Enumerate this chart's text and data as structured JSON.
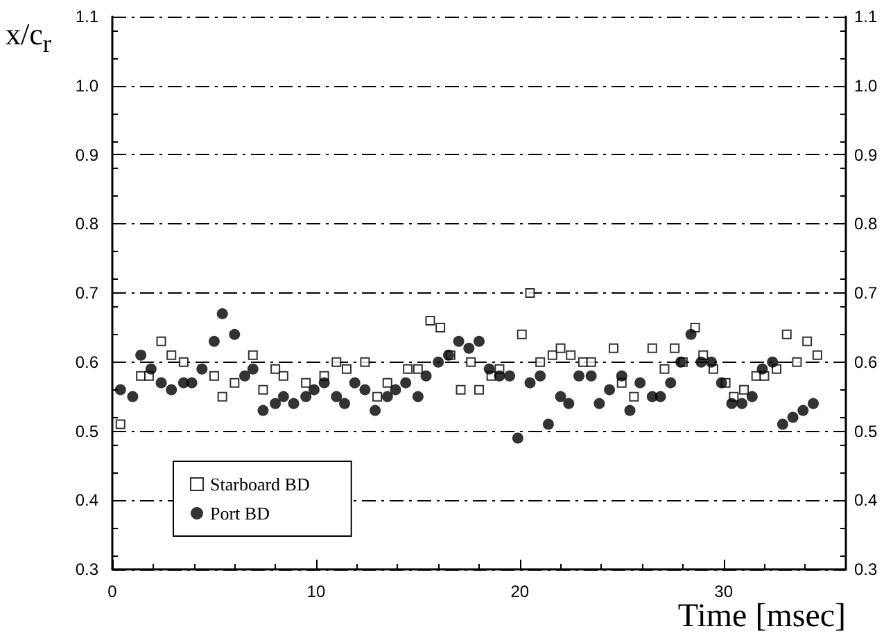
{
  "chart_data": {
    "type": "scatter",
    "xlabel": "Time [msec]",
    "ylabel": "x/c$_{r}$",
    "xlim": [
      0,
      36
    ],
    "xticks": [
      0,
      10,
      20,
      30
    ],
    "ylim": [
      0.3,
      1.1
    ],
    "yticks": [
      0.3,
      0.4,
      0.5,
      0.6,
      0.7,
      0.8,
      0.9,
      {
        "value": 1,
        "label": "1.0"
      },
      1.1
    ],
    "y2lim": [
      0.3,
      1.1
    ],
    "y2ticks": [
      0.3,
      0.4,
      0.5,
      0.6,
      0.7,
      0.8,
      0.9,
      {
        "value": 1,
        "label": "1.0"
      },
      1.1
    ],
    "grid": "y",
    "legend": "bottom left",
    "series": [
      {
        "name": "Starboard BD",
        "color": "#000000",
        "marker": "square",
        "x": [
          0.4,
          1.4,
          1.8,
          2.4,
          2.9,
          3.5,
          5.0,
          5.4,
          6.0,
          6.9,
          7.4,
          8.0,
          8.4,
          9.5,
          10.4,
          11.0,
          11.5,
          12.4,
          13.0,
          13.5,
          14.5,
          15.0,
          15.6,
          16.1,
          16.6,
          17.1,
          17.6,
          18.0,
          18.6,
          19.0,
          20.1,
          20.5,
          21.0,
          21.6,
          22.0,
          22.5,
          23.1,
          23.5,
          24.6,
          25.0,
          25.6,
          26.5,
          27.1,
          27.6,
          28.0,
          28.6,
          29.0,
          29.5,
          30.1,
          30.5,
          31.0,
          31.6,
          32.0,
          32.6,
          33.1,
          33.6,
          34.1,
          34.6
        ],
        "values": [
          0.51,
          0.58,
          0.58,
          0.63,
          0.61,
          0.6,
          0.58,
          0.55,
          0.57,
          0.61,
          0.56,
          0.59,
          0.58,
          0.57,
          0.58,
          0.6,
          0.59,
          0.6,
          0.55,
          0.57,
          0.59,
          0.59,
          0.66,
          0.65,
          0.61,
          0.56,
          0.6,
          0.56,
          0.58,
          0.59,
          0.64,
          0.7,
          0.6,
          0.61,
          0.62,
          0.61,
          0.6,
          0.6,
          0.62,
          0.57,
          0.55,
          0.62,
          0.59,
          0.62,
          0.6,
          0.65,
          0.61,
          0.59,
          0.57,
          0.55,
          0.56,
          0.58,
          0.58,
          0.59,
          0.64,
          0.6,
          0.63,
          0.61
        ]
      },
      {
        "name": "Port BD",
        "color": "#000000",
        "marker": "circle",
        "x": [
          0.4,
          1.0,
          1.4,
          1.9,
          2.4,
          2.9,
          3.5,
          3.9,
          4.4,
          5.0,
          5.4,
          6.0,
          6.5,
          6.9,
          7.4,
          8.0,
          8.4,
          8.9,
          9.5,
          9.9,
          10.4,
          11.0,
          11.4,
          11.9,
          12.4,
          12.9,
          13.5,
          13.9,
          14.4,
          15.0,
          15.4,
          16.0,
          16.5,
          17.0,
          17.5,
          18.0,
          18.5,
          19.0,
          19.5,
          19.9,
          20.5,
          21.0,
          21.4,
          22.0,
          22.4,
          22.9,
          23.5,
          23.9,
          24.4,
          25.0,
          25.4,
          25.9,
          26.5,
          26.9,
          27.4,
          27.9,
          28.4,
          28.9,
          29.4,
          29.9,
          30.4,
          30.9,
          31.4,
          31.9,
          32.4,
          32.9,
          33.4,
          33.9,
          34.4
        ],
        "values": [
          0.56,
          0.55,
          0.61,
          0.59,
          0.57,
          0.56,
          0.57,
          0.57,
          0.59,
          0.63,
          0.67,
          0.64,
          0.58,
          0.59,
          0.53,
          0.54,
          0.55,
          0.54,
          0.55,
          0.56,
          0.57,
          0.55,
          0.54,
          0.57,
          0.56,
          0.53,
          0.55,
          0.56,
          0.57,
          0.55,
          0.58,
          0.6,
          0.61,
          0.63,
          0.62,
          0.63,
          0.59,
          0.58,
          0.58,
          0.49,
          0.57,
          0.58,
          0.51,
          0.55,
          0.54,
          0.58,
          0.58,
          0.54,
          0.56,
          0.58,
          0.53,
          0.57,
          0.55,
          0.55,
          0.57,
          0.6,
          0.64,
          0.6,
          0.6,
          0.57,
          0.54,
          0.54,
          0.55,
          0.59,
          0.6,
          0.51,
          0.52,
          0.53,
          0.54
        ]
      }
    ]
  }
}
